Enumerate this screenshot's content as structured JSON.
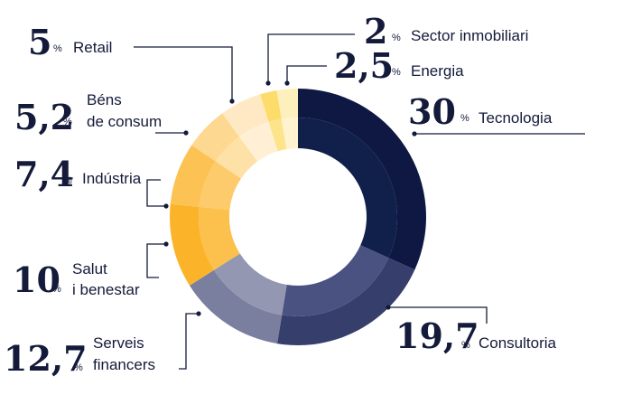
{
  "chart_data": {
    "type": "pie",
    "subtype": "donut",
    "unit": "%",
    "slices": [
      {
        "label": "Tecnologia",
        "value": 30,
        "value_text": "30",
        "color": "#0e1842",
        "inner_color": "#10204a"
      },
      {
        "label": "Consultoria",
        "value": 19.7,
        "value_text": "19,7",
        "color": "#363e6c",
        "inner_color": "#4a5282"
      },
      {
        "label": "Serveis financers",
        "value": 12.7,
        "value_text": "12,7",
        "color": "#7b7f9f",
        "inner_color": "#9397b2"
      },
      {
        "label": "Salut i benestar",
        "value": 10,
        "value_text": "10",
        "color": "#fbb42a",
        "inner_color": "#fcc04c"
      },
      {
        "label": "Indústria",
        "value": 7.4,
        "value_text": "7,4",
        "color": "#fcc254",
        "inner_color": "#fdcb6b"
      },
      {
        "label": "Béns de consum",
        "value": 5.2,
        "value_text": "5,2",
        "color": "#fdd890",
        "inner_color": "#fde1a7"
      },
      {
        "label": "Retail",
        "value": 5,
        "value_text": "5",
        "color": "#fee9c4",
        "inner_color": "#fff0d5"
      },
      {
        "label": "Sector inmobiliari",
        "value": 2,
        "value_text": "2",
        "color": "#fddc6c",
        "inner_color": "#fde48a"
      },
      {
        "label": "Energia",
        "value": 2.5,
        "value_text": "2,5",
        "color": "#fef0bc",
        "inner_color": "#fff4cf"
      }
    ],
    "labels": {
      "tecnologia": {
        "value": "30",
        "pct": "%",
        "lines": [
          "Tecnologia"
        ]
      },
      "consultoria": {
        "value": "19,7",
        "pct": "%",
        "lines": [
          "Consultoria"
        ]
      },
      "serveis": {
        "value": "12,7",
        "pct": "%",
        "lines": [
          "Serveis",
          "financers"
        ]
      },
      "salut": {
        "value": "10",
        "pct": "%",
        "lines": [
          "Salut",
          "i benestar"
        ]
      },
      "industria": {
        "value": "7,4",
        "pct": "%",
        "lines": [
          "Indústria"
        ]
      },
      "bens": {
        "value": "5,2",
        "pct": "%",
        "lines": [
          "Béns",
          "de consum"
        ]
      },
      "retail": {
        "value": "5",
        "pct": "%",
        "lines": [
          "Retail"
        ]
      },
      "sector": {
        "value": "2",
        "pct": "%",
        "lines": [
          "Sector inmobiliari"
        ]
      },
      "energia": {
        "value": "2,5",
        "pct": "%",
        "lines": [
          "Energia"
        ]
      }
    }
  }
}
